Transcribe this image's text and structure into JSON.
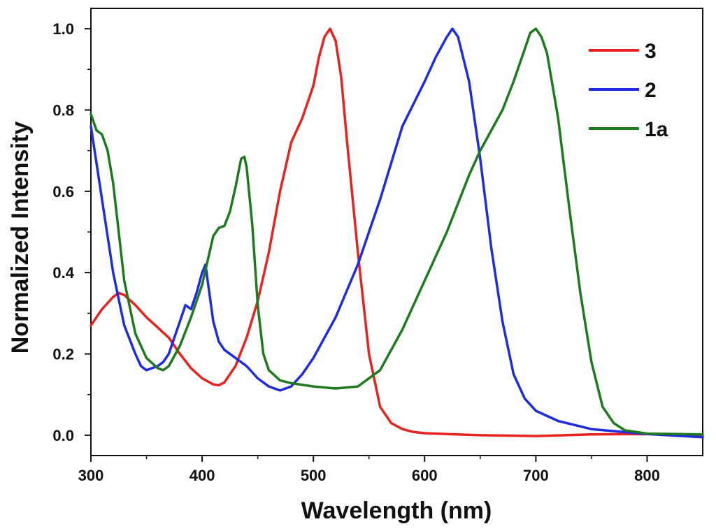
{
  "chart_data": {
    "type": "line",
    "xlabel": "Wavelength (nm)",
    "ylabel": "Normalized  Intensity",
    "xlim": [
      300,
      850
    ],
    "ylim": [
      -0.05,
      1.05
    ],
    "x_ticks": [
      300,
      400,
      500,
      600,
      700,
      800
    ],
    "x_tick_labels": [
      "300",
      "400",
      "500",
      "600",
      "700",
      "800"
    ],
    "y_ticks": [
      0.0,
      0.2,
      0.4,
      0.6,
      0.8,
      1.0
    ],
    "y_tick_labels": [
      "0.0",
      "0.2",
      "0.4",
      "0.6",
      "0.8",
      "1.0"
    ],
    "grid": false,
    "legend_position": "top-right",
    "series": [
      {
        "name": "3",
        "color": "#e8231f",
        "x": [
          300,
          310,
          320,
          325,
          330,
          340,
          350,
          360,
          370,
          380,
          390,
          400,
          410,
          415,
          420,
          430,
          440,
          450,
          460,
          470,
          480,
          490,
          500,
          505,
          510,
          515,
          520,
          525,
          530,
          540,
          550,
          560,
          570,
          580,
          590,
          600,
          620,
          650,
          700,
          750,
          800,
          850
        ],
        "y": [
          0.27,
          0.31,
          0.34,
          0.35,
          0.345,
          0.32,
          0.29,
          0.265,
          0.24,
          0.2,
          0.165,
          0.14,
          0.125,
          0.123,
          0.13,
          0.17,
          0.24,
          0.33,
          0.45,
          0.6,
          0.72,
          0.78,
          0.86,
          0.93,
          0.98,
          1.0,
          0.97,
          0.88,
          0.73,
          0.45,
          0.2,
          0.07,
          0.03,
          0.015,
          0.008,
          0.005,
          0.003,
          0.0,
          -0.002,
          0.002,
          0.003,
          0.0
        ]
      },
      {
        "name": "2",
        "color": "#1f2be0",
        "x": [
          300,
          310,
          320,
          330,
          340,
          345,
          350,
          355,
          360,
          365,
          370,
          375,
          380,
          385,
          390,
          395,
          400,
          403,
          405,
          410,
          415,
          420,
          430,
          440,
          450,
          460,
          470,
          480,
          490,
          500,
          510,
          520,
          540,
          560,
          580,
          600,
          610,
          620,
          625,
          630,
          640,
          650,
          660,
          670,
          680,
          690,
          700,
          720,
          750,
          800,
          850
        ],
        "y": [
          0.76,
          0.58,
          0.4,
          0.27,
          0.2,
          0.17,
          0.16,
          0.165,
          0.17,
          0.18,
          0.2,
          0.24,
          0.28,
          0.32,
          0.31,
          0.35,
          0.4,
          0.42,
          0.38,
          0.28,
          0.23,
          0.21,
          0.19,
          0.17,
          0.14,
          0.12,
          0.11,
          0.12,
          0.15,
          0.19,
          0.24,
          0.29,
          0.42,
          0.58,
          0.76,
          0.87,
          0.93,
          0.98,
          1.0,
          0.98,
          0.87,
          0.68,
          0.46,
          0.28,
          0.15,
          0.09,
          0.06,
          0.035,
          0.015,
          0.003,
          -0.005
        ]
      },
      {
        "name": "1a",
        "color": "#1e7a1e",
        "x": [
          300,
          305,
          310,
          315,
          320,
          325,
          330,
          340,
          350,
          360,
          365,
          370,
          380,
          390,
          400,
          410,
          415,
          420,
          425,
          430,
          435,
          438,
          440,
          445,
          450,
          455,
          460,
          470,
          480,
          500,
          520,
          540,
          560,
          580,
          600,
          620,
          640,
          650,
          660,
          670,
          680,
          690,
          695,
          700,
          705,
          710,
          720,
          730,
          740,
          750,
          760,
          770,
          780,
          800,
          850
        ],
        "y": [
          0.79,
          0.75,
          0.74,
          0.7,
          0.62,
          0.5,
          0.38,
          0.25,
          0.19,
          0.165,
          0.16,
          0.17,
          0.22,
          0.29,
          0.37,
          0.49,
          0.51,
          0.515,
          0.55,
          0.61,
          0.68,
          0.685,
          0.66,
          0.52,
          0.32,
          0.2,
          0.16,
          0.135,
          0.128,
          0.12,
          0.115,
          0.12,
          0.16,
          0.26,
          0.38,
          0.5,
          0.64,
          0.7,
          0.75,
          0.8,
          0.87,
          0.95,
          0.99,
          1.0,
          0.98,
          0.94,
          0.78,
          0.56,
          0.35,
          0.18,
          0.07,
          0.03,
          0.012,
          0.004,
          0.002
        ]
      }
    ]
  }
}
